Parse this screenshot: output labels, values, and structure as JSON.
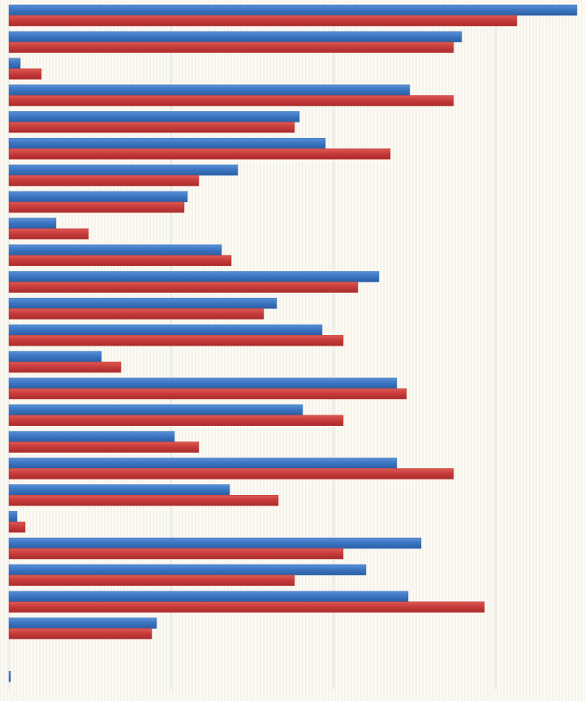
{
  "chart_data": {
    "type": "bar",
    "orientation": "horizontal",
    "grid": true,
    "gridlines": "vertical",
    "xlim": [
      0,
      3.5
    ],
    "gridline_values": [
      0,
      1,
      2,
      3
    ],
    "colors": {
      "series1": "#3a73bf",
      "series2": "#c63a3a",
      "background": "#fbfaf4",
      "grid": "#dde3ea"
    },
    "categories": [
      "",
      "",
      "",
      "",
      "",
      "",
      "",
      "",
      "",
      "",
      "",
      "",
      "",
      "",
      "",
      "",
      "",
      "",
      "",
      "",
      "",
      "",
      "",
      "",
      "",
      ""
    ],
    "series": [
      {
        "values": [
          3.5,
          2.79,
          0.07,
          2.47,
          1.79,
          1.95,
          1.41,
          1.1,
          0.29,
          1.31,
          2.28,
          1.65,
          1.93,
          0.57,
          2.39,
          1.81,
          1.02,
          2.39,
          1.36,
          0.05,
          2.54,
          2.2,
          2.46,
          0.91,
          0,
          0.01
        ]
      },
      {
        "values": [
          3.13,
          2.74,
          0.2,
          2.74,
          1.76,
          2.35,
          1.17,
          1.08,
          0.49,
          1.37,
          2.15,
          1.57,
          2.06,
          0.69,
          2.45,
          2.06,
          1.17,
          2.74,
          1.66,
          0.1,
          2.06,
          1.76,
          2.93,
          0.88,
          0,
          0
        ]
      }
    ]
  }
}
